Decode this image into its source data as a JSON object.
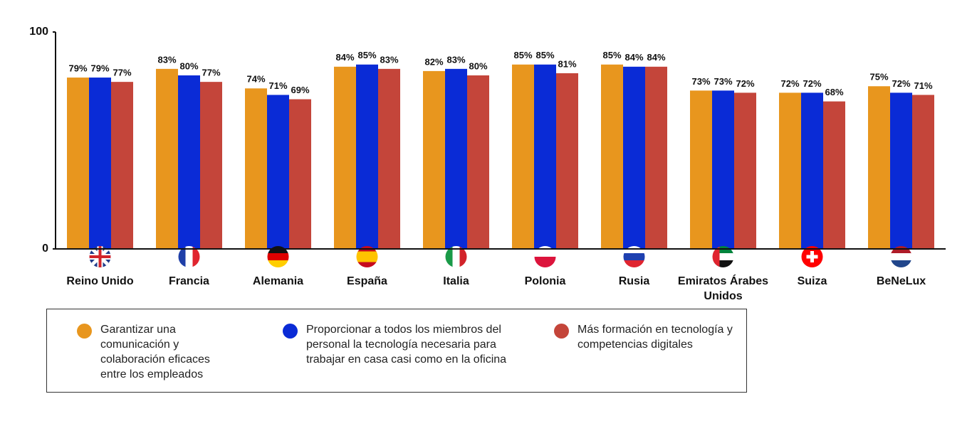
{
  "chart_data": {
    "type": "bar",
    "categories": [
      "Reino Unido",
      "Francia",
      "Alemania",
      "España",
      "Italia",
      "Polonia",
      "Rusia",
      "Emiratos Árabes Unidos",
      "Suiza",
      "BeNeLux"
    ],
    "series": [
      {
        "name": "Garantizar una comunicación y colaboración eficaces entre los empleados",
        "color": "#e8961e",
        "values": [
          79,
          83,
          74,
          84,
          82,
          85,
          85,
          73,
          72,
          75
        ],
        "value_labels": [
          "79%",
          "83%",
          "74%",
          "84%",
          "82%",
          "85%",
          "85%",
          "73%",
          "72%",
          "75%"
        ]
      },
      {
        "name": "Proporcionar a todos los miembros del personal la tecnología necesaria para trabajar en casa casi como en la oficina",
        "color": "#0a2bd6",
        "values": [
          79,
          80,
          71,
          85,
          83,
          85,
          84,
          73,
          72,
          72
        ],
        "value_labels": [
          "79%",
          "80%",
          "71%",
          "85%",
          "83%",
          "85%",
          "84%",
          "73%",
          "72%",
          "72%"
        ]
      },
      {
        "name": "Más formación en tecnología y competencias digitales",
        "color": "#c4453a",
        "values": [
          77,
          77,
          69,
          83,
          80,
          81,
          84,
          72,
          68,
          71
        ],
        "value_labels": [
          "77%",
          "77%",
          "69%",
          "83%",
          "80%",
          "81%",
          "84%",
          "72%",
          "68%",
          "71%"
        ]
      }
    ],
    "ylim": [
      0,
      100
    ],
    "yticks": [
      0,
      100
    ]
  }
}
